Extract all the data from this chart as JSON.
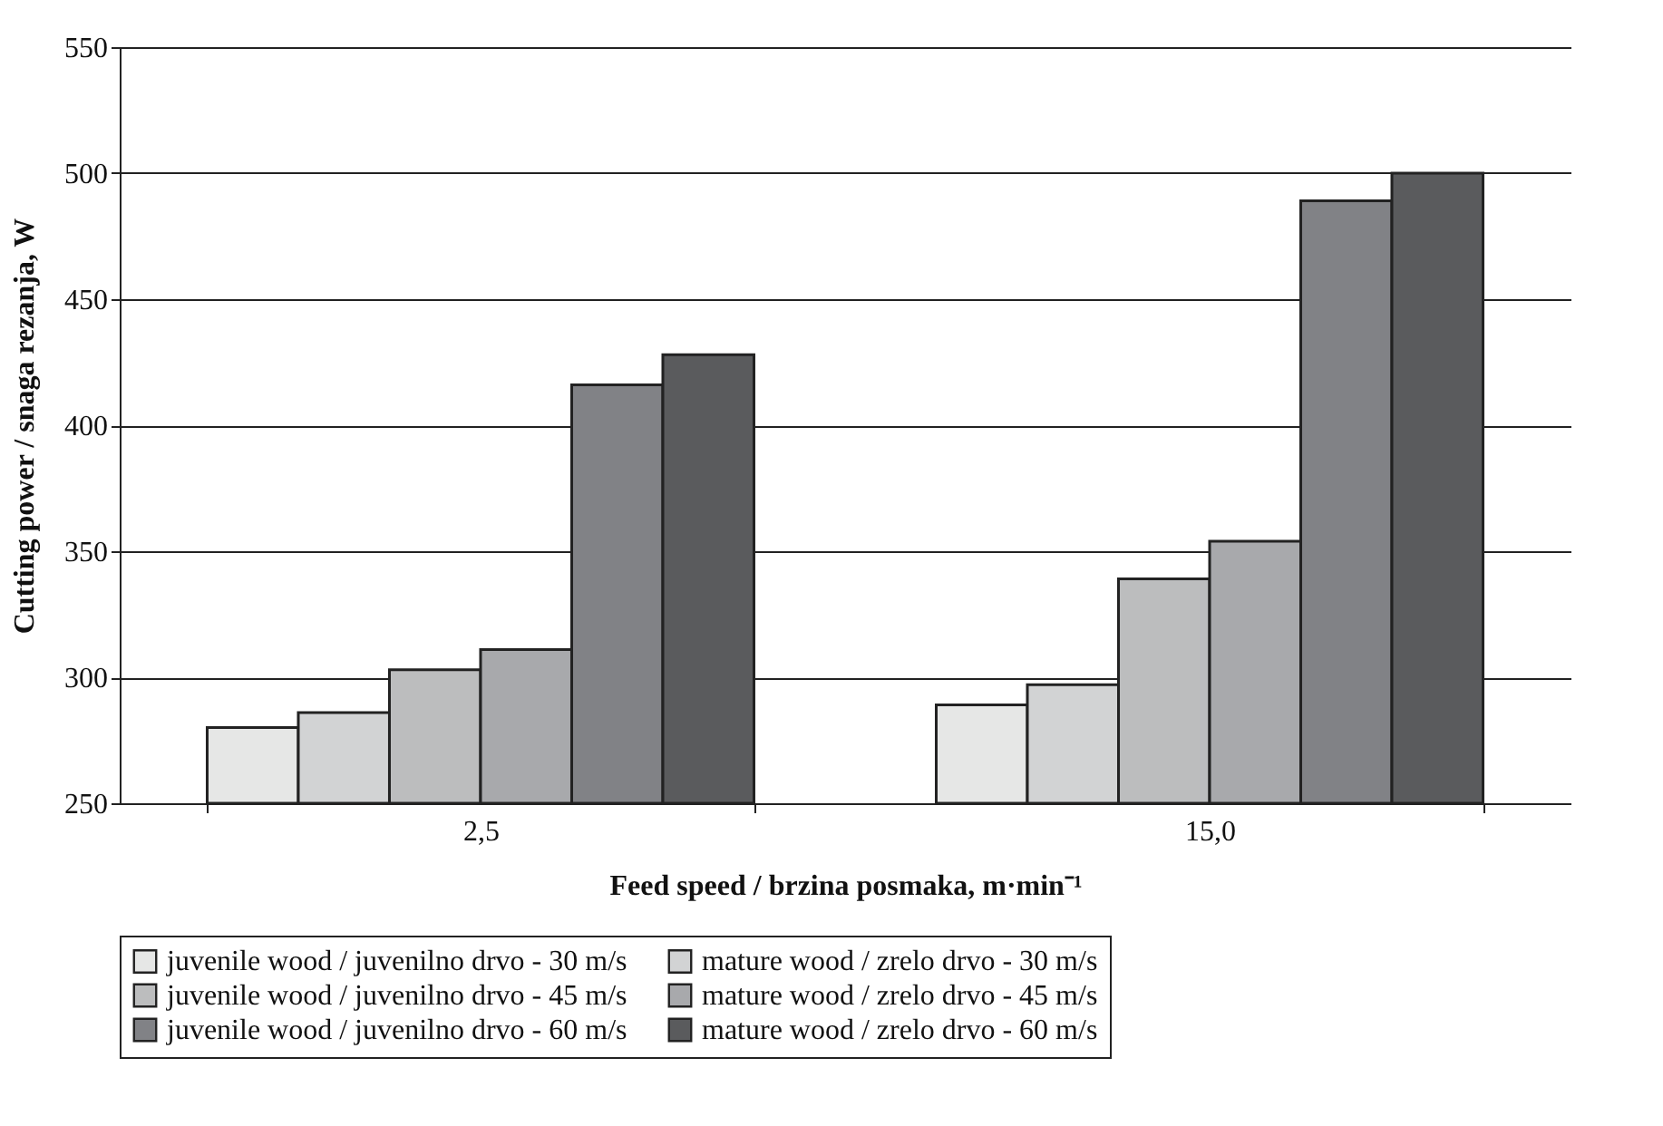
{
  "chart_data": {
    "type": "bar",
    "xlabel": "Feed speed / brzina posmaka, m·min⁻¹",
    "ylabel": "Cutting power / snaga rezanja, W",
    "categories": [
      "2,5",
      "15,0"
    ],
    "series": [
      {
        "name": "juvenile wood / juvenilno drvo - 30 m/s",
        "color": "#e6e7e6",
        "values": [
          280,
          289
        ]
      },
      {
        "name": "mature wood / zrelo drvo - 30 m/s",
        "color": "#d2d3d4",
        "values": [
          286,
          297
        ]
      },
      {
        "name": "juvenile wood / juvenilno drvo - 45 m/s",
        "color": "#bcbdbe",
        "values": [
          303,
          339
        ]
      },
      {
        "name": "mature wood / zrelo drvo - 45 m/s",
        "color": "#a8a9ac",
        "values": [
          311,
          354
        ]
      },
      {
        "name": "juvenile wood / juvenilno drvo - 60 m/s",
        "color": "#818286",
        "values": [
          416,
          489
        ]
      },
      {
        "name": "mature wood / zrelo drvo - 60 m/s",
        "color": "#5a5b5d",
        "values": [
          428,
          500
        ]
      }
    ],
    "ylim": [
      250,
      550
    ],
    "yticks": [
      250,
      300,
      350,
      400,
      450,
      500,
      550
    ],
    "grid": "y",
    "legend": "bottom"
  }
}
